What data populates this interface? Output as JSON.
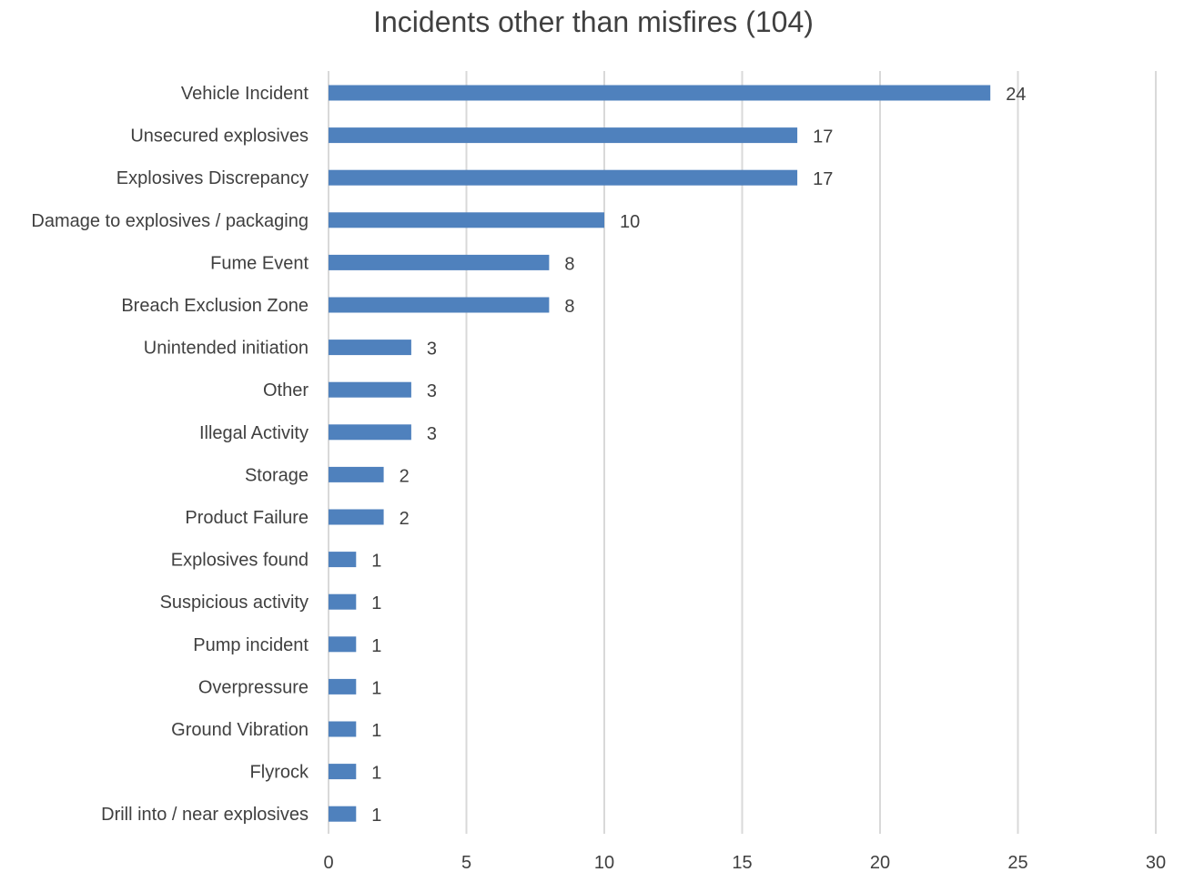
{
  "chart_data": {
    "type": "bar",
    "orientation": "horizontal",
    "title": "Incidents other than misfires (104)",
    "xlabel": "",
    "ylabel": "",
    "xlim": [
      0,
      30
    ],
    "x_ticks": [
      0,
      5,
      10,
      15,
      20,
      25,
      30
    ],
    "grid": "vertical",
    "bar_color": "#4f81bd",
    "categories": [
      "Vehicle Incident",
      "Unsecured explosives",
      "Explosives Discrepancy",
      "Damage to explosives / packaging",
      "Fume Event",
      "Breach Exclusion Zone",
      "Unintended initiation",
      "Other",
      "Illegal Activity",
      "Storage",
      "Product Failure",
      "Explosives found",
      "Suspicious activity",
      "Pump incident",
      "Overpressure",
      "Ground Vibration",
      "Flyrock",
      "Drill into / near explosives"
    ],
    "values": [
      24,
      17,
      17,
      10,
      8,
      8,
      3,
      3,
      3,
      2,
      2,
      1,
      1,
      1,
      1,
      1,
      1,
      1
    ]
  }
}
